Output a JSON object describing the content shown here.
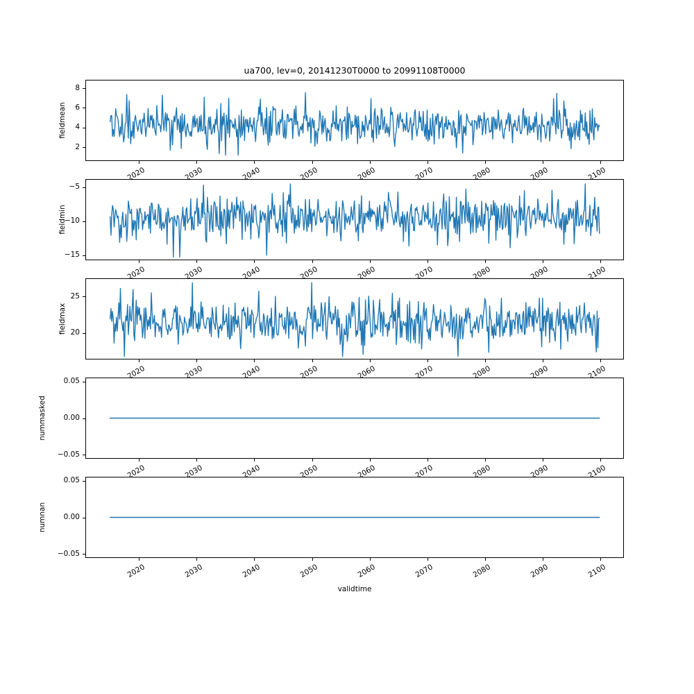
{
  "chart_data": {
    "type": "line",
    "title": "ua700, lev=0, 20141230T0000 to 20991108T0000",
    "xlabel": "validtime",
    "line_color": "#1f77b4",
    "xlim": [
      2010.7,
      2104.1
    ],
    "x_data_range": [
      2015.0,
      2099.86
    ],
    "grid": false,
    "legend": "none",
    "xticks": [
      {
        "year": 2020,
        "label": "2020"
      },
      {
        "year": 2030,
        "label": "2030"
      },
      {
        "year": 2040,
        "label": "2040"
      },
      {
        "year": 2050,
        "label": "2050"
      },
      {
        "year": 2060,
        "label": "2060"
      },
      {
        "year": 2070,
        "label": "2070"
      },
      {
        "year": 2080,
        "label": "2080"
      },
      {
        "year": 2090,
        "label": "2090"
      },
      {
        "year": 2100,
        "label": "2100"
      }
    ],
    "panels": [
      {
        "ylabel": "fieldmean",
        "ylim": [
          0.6,
          8.85
        ],
        "yticks": [
          {
            "value": 8,
            "label": "8"
          },
          {
            "value": 6,
            "label": "6"
          },
          {
            "value": 4,
            "label": "4"
          },
          {
            "value": 2,
            "label": "2"
          }
        ],
        "series": {
          "kind": "random_noise",
          "n": 620,
          "mean": 4.25,
          "std": 0.95,
          "min": 1.2,
          "max": 8.1,
          "seed": 1234567
        }
      },
      {
        "ylabel": "fieldmin",
        "ylim": [
          -15.75,
          -3.8
        ],
        "yticks": [
          {
            "value": -5,
            "label": "−5"
          },
          {
            "value": -10,
            "label": "−10"
          },
          {
            "value": -15,
            "label": "−15"
          }
        ],
        "series": {
          "kind": "random_noise",
          "n": 620,
          "mean": -9.35,
          "std": 1.45,
          "min": -15.3,
          "max": -4.5,
          "seed": 7654321
        }
      },
      {
        "ylabel": "fieldmax",
        "ylim": [
          16.35,
          27.5
        ],
        "yticks": [
          {
            "value": 25,
            "label": "25"
          },
          {
            "value": 20,
            "label": "20"
          }
        ],
        "series": {
          "kind": "random_noise",
          "n": 620,
          "mean": 21.6,
          "std": 1.5,
          "min": 16.8,
          "max": 26.9,
          "seed": 9999133
        }
      },
      {
        "ylabel": "nummasked",
        "ylim": [
          -0.0556,
          0.0556
        ],
        "yticks": [
          {
            "value": 0.05,
            "label": "0.05"
          },
          {
            "value": 0.0,
            "label": "0.00"
          },
          {
            "value": -0.05,
            "label": "−0.05"
          }
        ],
        "series": {
          "kind": "constant",
          "value": 0
        }
      },
      {
        "ylabel": "numnan",
        "ylim": [
          -0.0556,
          0.0556
        ],
        "yticks": [
          {
            "value": 0.05,
            "label": "0.05"
          },
          {
            "value": 0.0,
            "label": "0.00"
          },
          {
            "value": -0.05,
            "label": "−0.05"
          }
        ],
        "series": {
          "kind": "constant",
          "value": 0
        }
      }
    ]
  }
}
